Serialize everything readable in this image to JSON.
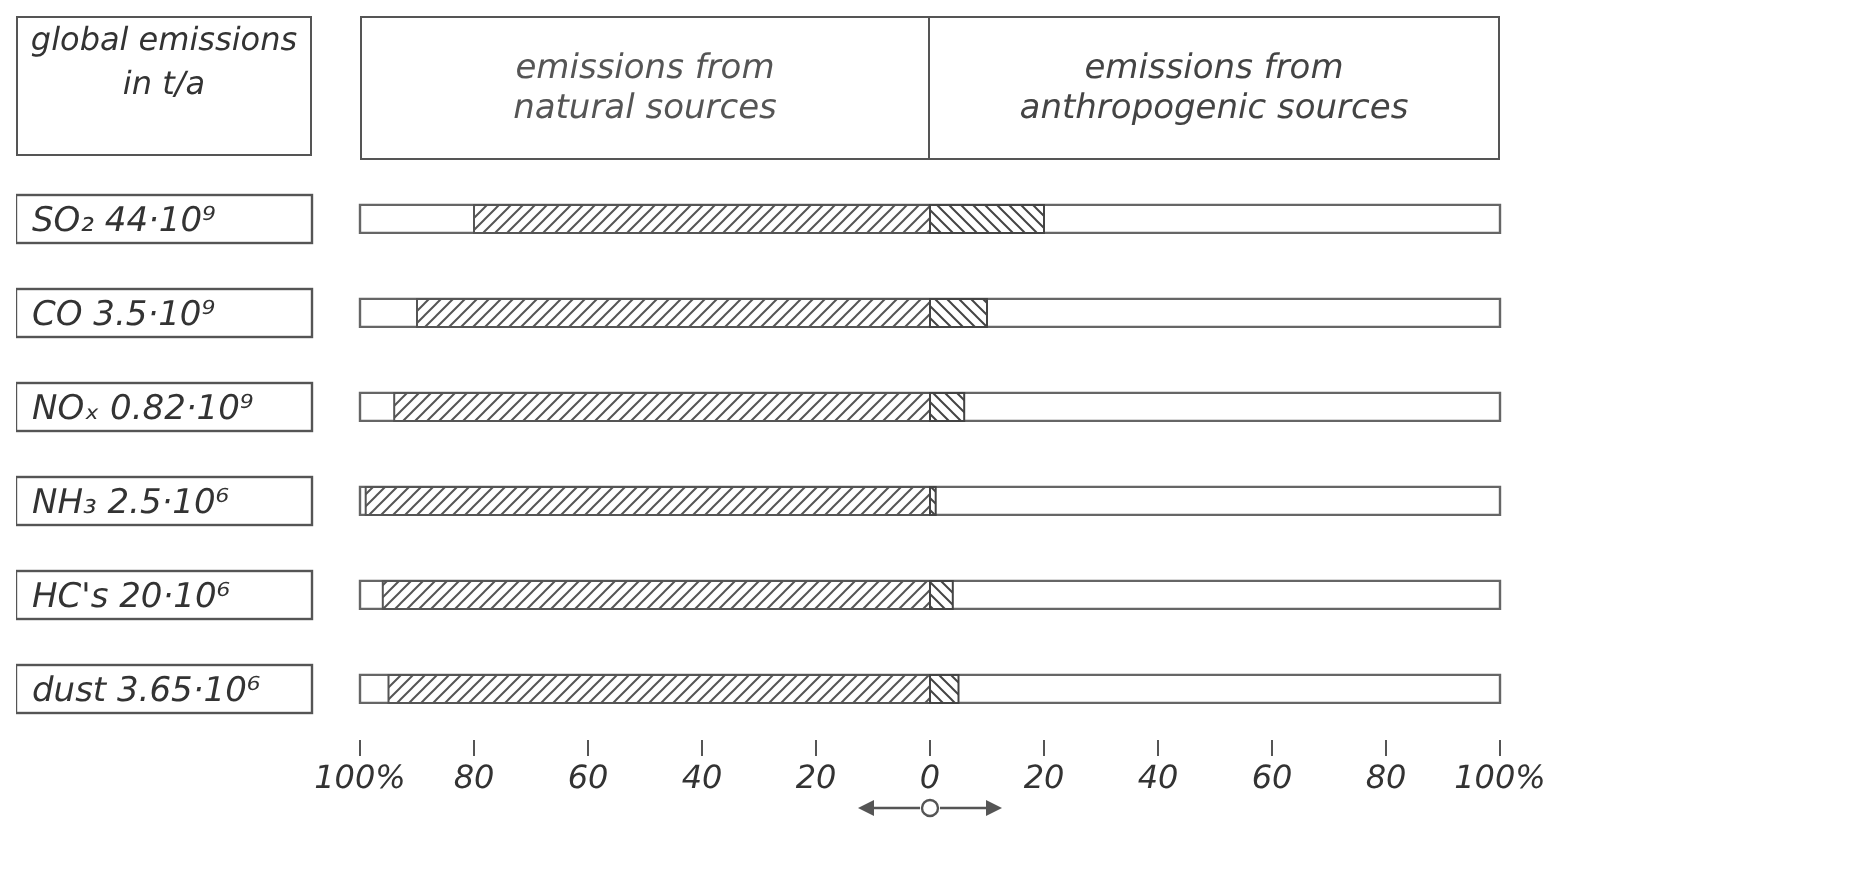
{
  "chart_data": {
    "type": "bar",
    "orientation": "horizontal",
    "stacked": true,
    "ylabel": "global emissions in t/a",
    "categories": [
      "SO₂ 44·10⁹",
      "CO 3.5·10⁹",
      "NOₓ 0.82·10⁹",
      "NH₃ 2.5·10⁶",
      "HC's 20·10⁶",
      "dust 3.65·10⁶"
    ],
    "series": [
      {
        "name": "emissions from natural sources",
        "color": "#555555",
        "values": [
          -80,
          -90,
          -94,
          -99,
          -96,
          -95
        ]
      },
      {
        "name": "emissions from anthropogenic sources",
        "color": "#444444",
        "values": [
          20,
          10,
          6,
          1,
          4,
          5
        ]
      }
    ],
    "xlim": [
      -100,
      100
    ],
    "xticks": [
      {
        "value": -100,
        "label": "100%"
      },
      {
        "value": -80,
        "label": "80"
      },
      {
        "value": -60,
        "label": "60"
      },
      {
        "value": -40,
        "label": "40"
      },
      {
        "value": -20,
        "label": "20"
      },
      0,
      20,
      40,
      60,
      80,
      {
        "value": 100,
        "label": "100%"
      }
    ],
    "legend": "top"
  }
}
